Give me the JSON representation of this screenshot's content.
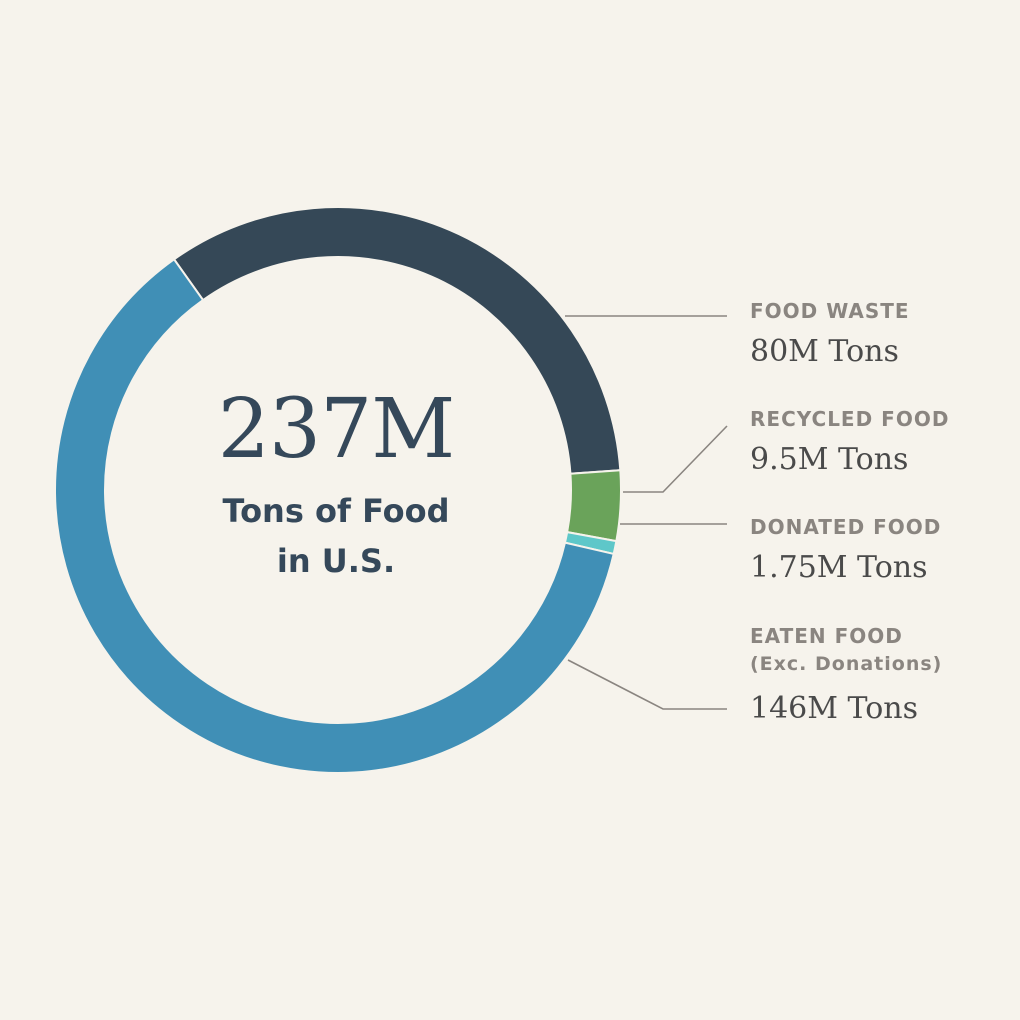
{
  "center": {
    "value": "237M",
    "caption_line1": "Tons of Food",
    "caption_line2": "in U.S."
  },
  "labels": {
    "food_waste": {
      "title": "FOOD WASTE",
      "value": "80M Tons"
    },
    "recycled_food": {
      "title": "RECYCLED FOOD",
      "value": "9.5M Tons"
    },
    "donated_food": {
      "title": "DONATED FOOD",
      "value": "1.75M Tons"
    },
    "eaten_food": {
      "title": "EATEN FOOD",
      "subtitle": "(Exc. Donations)",
      "value": "146M Tons"
    }
  },
  "colors": {
    "background": "#f6f3ec",
    "food_waste": "#354857",
    "recycled_food": "#6aa35a",
    "donated_food": "#5ec7c9",
    "eaten_food": "#408fb6",
    "leader_line": "#8a8580"
  },
  "chart_data": {
    "type": "pie",
    "style": "donut",
    "total": 237,
    "unit": "M Tons",
    "categories": [
      "FOOD WASTE",
      "RECYCLED FOOD",
      "DONATED FOOD",
      "EATEN FOOD"
    ],
    "values": [
      80,
      9.5,
      1.75,
      146
    ],
    "legend": "right"
  }
}
